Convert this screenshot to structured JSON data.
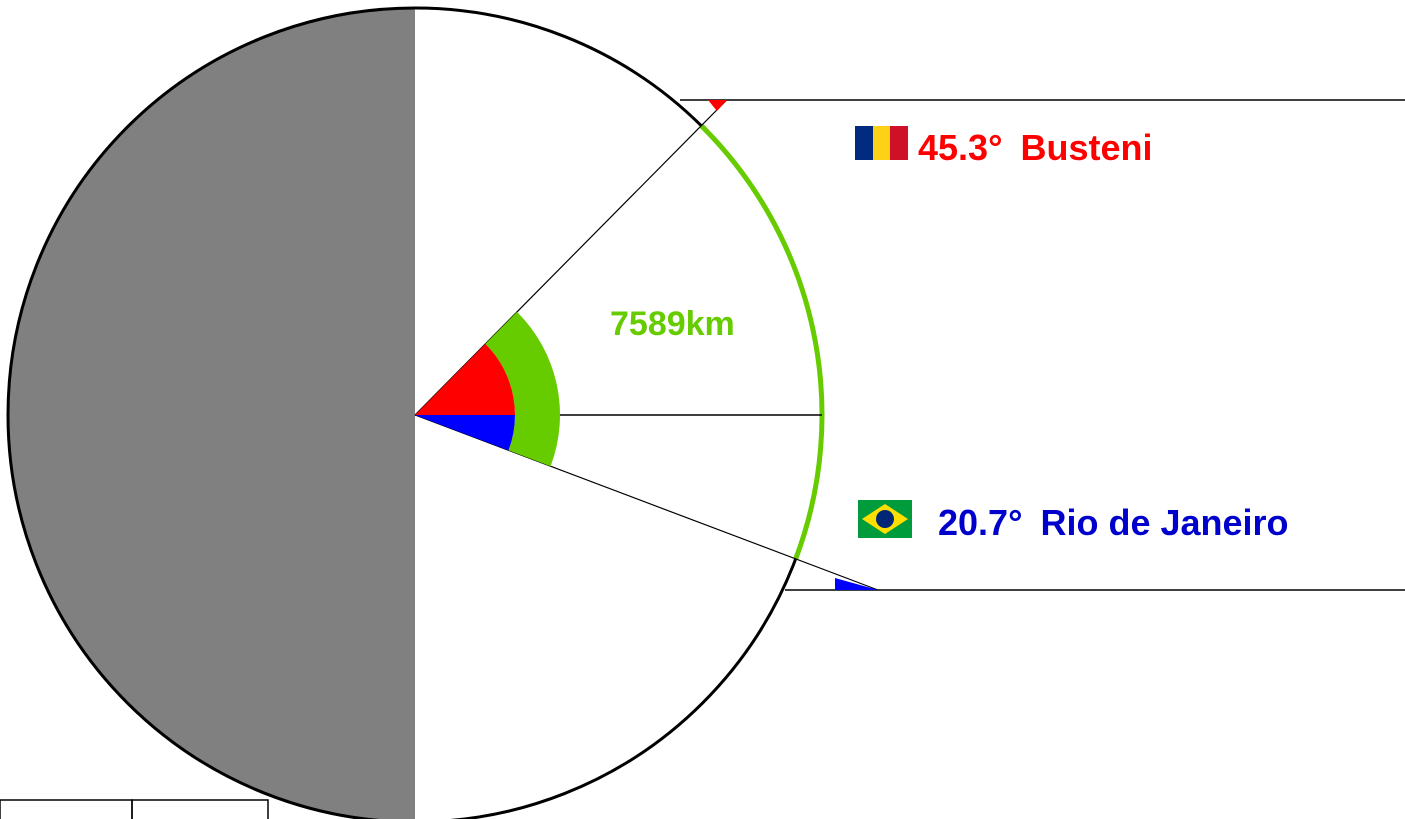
{
  "busteni": {
    "angle": "45.3°",
    "city": "Busteni"
  },
  "distance": "7589km",
  "rio": {
    "angle": "20.7°",
    "city": "Rio de Janeiro"
  }
}
